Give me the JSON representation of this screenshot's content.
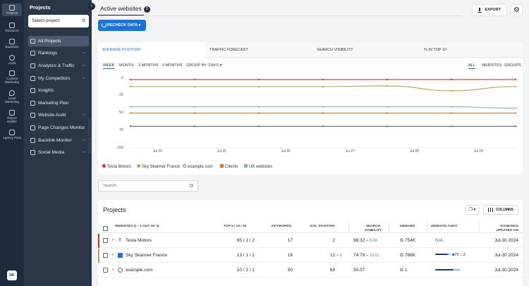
{
  "rail": {
    "items": [
      {
        "label": "Projects",
        "icon": "home-icon"
      },
      {
        "label": "Research",
        "icon": "research-icon"
      },
      {
        "label": "Backlinks",
        "icon": "link-icon"
      },
      {
        "label": "Audit",
        "icon": "gear-icon"
      },
      {
        "label": "Content Marketing",
        "icon": "pencil-icon"
      },
      {
        "label": "Local Marketing",
        "icon": "pin-icon"
      },
      {
        "label": "Report Builder",
        "icon": "report-icon"
      },
      {
        "label": "Agency Pack",
        "icon": "briefcase-icon"
      }
    ],
    "avatar": "DK"
  },
  "panel": {
    "title": "Projects",
    "select_label": "Select project",
    "items": [
      {
        "label": "All Projects",
        "chevron": false
      },
      {
        "label": "Rankings",
        "chevron": true
      },
      {
        "label": "Analytics & Traffic",
        "chevron": true
      },
      {
        "label": "My Competitors",
        "chevron": true
      },
      {
        "label": "Insights",
        "chevron": false
      },
      {
        "label": "Marketing Plan",
        "chevron": false
      },
      {
        "label": "Website Audit",
        "chevron": true
      },
      {
        "label": "Page Changes Monitor",
        "chevron": false
      },
      {
        "label": "Backlink Monitor",
        "chevron": true
      },
      {
        "label": "Social Media",
        "chevron": true
      }
    ]
  },
  "header": {
    "tab_label": "Active websites",
    "tab_count": "3",
    "export_label": "EXPORT",
    "recheck_label": "RECHECK DATA"
  },
  "metric_tabs": [
    "AVERAGE POSITION",
    "TRAFFIC FORECAST",
    "SEARCH VISIBILITY",
    "% IN TOP 10"
  ],
  "periods": [
    "WEEK",
    "MONTH",
    "3 MONTHS",
    "6 MONTHS",
    "GROUP BY: DAYS"
  ],
  "filters": [
    "ALL",
    "WEBSITES",
    "GROUPS"
  ],
  "chart_data": {
    "type": "line",
    "ylabel": "AVERAGE POSITION",
    "ylim": [
      0,
      100
    ],
    "y_reversed": true,
    "y_ticks": [
      "0",
      "25",
      "50",
      "75",
      "100"
    ],
    "x_ticks": [
      "Jul 24",
      "Jul 25",
      "Jul 26",
      "Jul 27",
      "Jul 28",
      "Jul 29"
    ],
    "x": [
      0,
      1,
      2,
      3,
      4,
      5,
      6
    ],
    "series": [
      {
        "name": "Tesla Motors",
        "color": "#d93025",
        "values": [
          2,
          2,
          2,
          2,
          2,
          2,
          2
        ]
      },
      {
        "name": "Sky Skanner France",
        "color": "#b5a642",
        "values": [
          12,
          12,
          12,
          12,
          11,
          18,
          12
        ]
      },
      {
        "name": "example.com",
        "color": "#5a6a7e",
        "values": [
          69,
          69,
          69,
          69,
          69,
          69,
          69
        ]
      },
      {
        "name": "Clients",
        "color": "#e8711a",
        "values": [
          50,
          50,
          50,
          50,
          50,
          50,
          50
        ]
      },
      {
        "name": "UK websites",
        "color": "#7fb3c8",
        "values": [
          41,
          41,
          41,
          41,
          41,
          41,
          43
        ]
      }
    ]
  },
  "search": {
    "placeholder": "Search"
  },
  "projects": {
    "title": "Projects",
    "columns_label": "COLUMNS",
    "headers": {
      "websites": "WEBSITES (1 - 3 out of 3)",
      "top": "TOP 5 / 10 / 30",
      "keywords": "KEYWORDS",
      "avg_position": "AVG. POSITION",
      "visibility": "SEARCH VISIBILITY",
      "indexed": "INDEXED",
      "audit": "WEBSITE AUDIT",
      "updated": "RANKINGS UPDATED ON"
    },
    "rows": [
      {
        "name": "Tesla Motors",
        "accent": "#d93025",
        "top": "65 / 1 / 2",
        "keywords": "17",
        "avg_position": "2",
        "avg_change": "",
        "visibility": "98.32",
        "vis_change": "+ 0.04",
        "indexed": "754K",
        "audit": "N/A",
        "audit_a": "",
        "audit_b": "",
        "updated": "Jul-30 2024"
      },
      {
        "name": "Sky Skanner France",
        "accent": "#b5a642",
        "top": "13 / 1 / 2",
        "keywords": "16",
        "avg_position": "12",
        "avg_change": "+ 6",
        "visibility": "74.79",
        "vis_change": "+ 10.01",
        "indexed": "766K",
        "audit": "",
        "audit_a": "75",
        "audit_b": "2",
        "updated": "Jul-30 2024"
      },
      {
        "name": "example.com",
        "accent": "",
        "top": "10 / 2 / 1",
        "keywords": "50",
        "avg_position": "69",
        "avg_change": "",
        "visibility": "50.07",
        "vis_change": "",
        "indexed": "1",
        "audit": "",
        "audit_a": "",
        "audit_b": "",
        "updated": "Jul-30 2024"
      }
    ]
  }
}
